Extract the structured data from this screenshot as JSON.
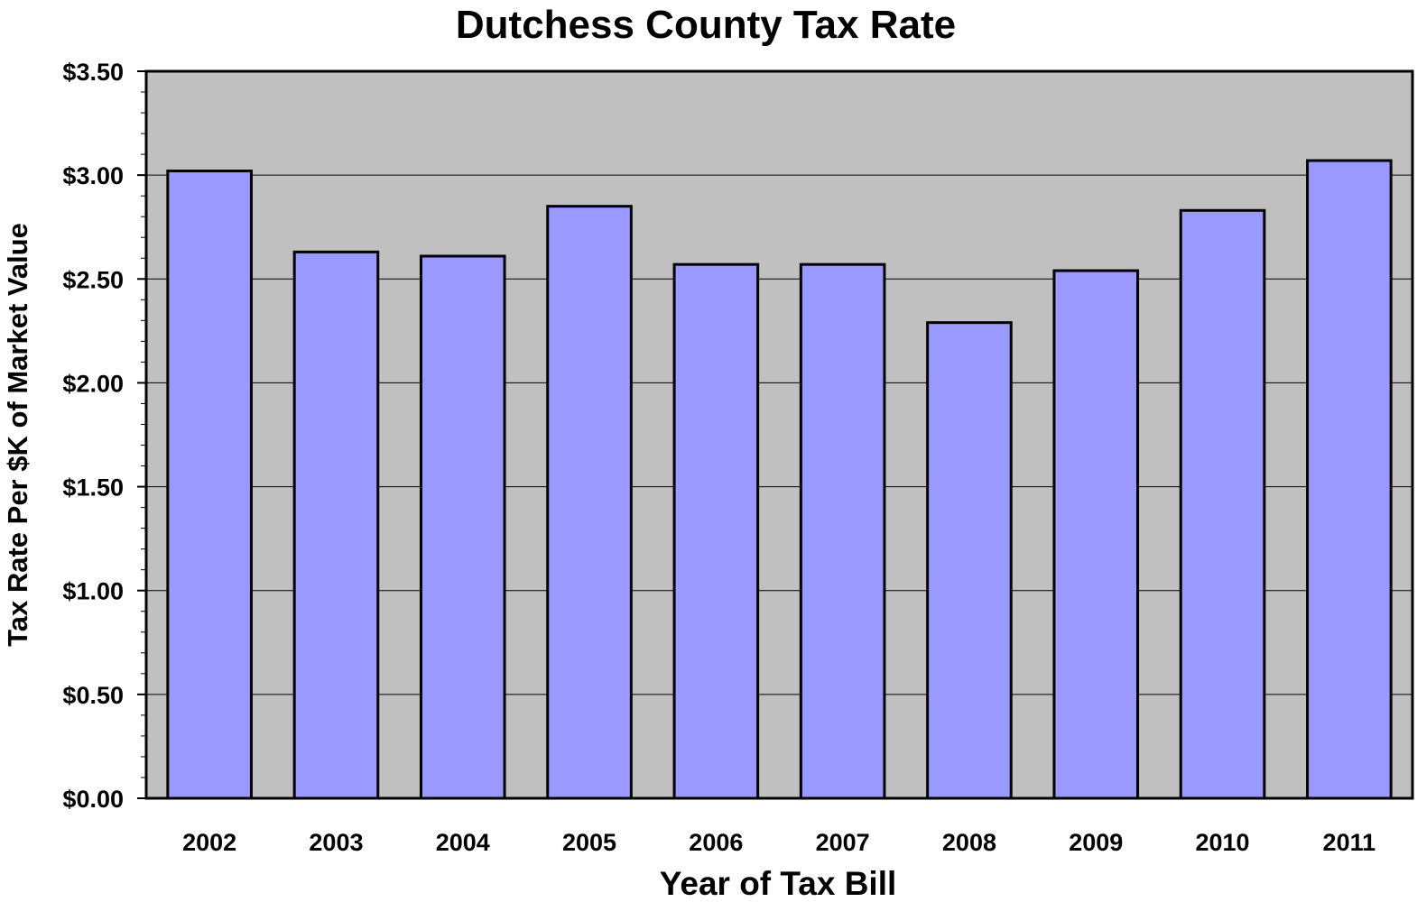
{
  "chart_data": {
    "type": "bar",
    "title": "Dutchess County Tax Rate",
    "xlabel": "Year of Tax Bill",
    "ylabel": "Tax Rate Per $K of Market Value",
    "categories": [
      "2002",
      "2003",
      "2004",
      "2005",
      "2006",
      "2007",
      "2008",
      "2009",
      "2010",
      "2011"
    ],
    "values": [
      3.02,
      2.63,
      2.61,
      2.85,
      2.57,
      2.57,
      2.29,
      2.54,
      2.83,
      3.07
    ],
    "ylim": [
      0,
      3.5
    ],
    "y_ticks": [
      0,
      0.5,
      1.0,
      1.5,
      2.0,
      2.5,
      3.0,
      3.5
    ],
    "y_tick_labels": [
      "$0.00",
      "$0.50",
      "$1.00",
      "$1.50",
      "$2.00",
      "$2.50",
      "$3.00",
      "$3.50"
    ],
    "grid": true,
    "legend": "none",
    "colors": {
      "bar_fill": "#9999ff",
      "plot_background": "#c0c0c0",
      "outline": "#000000"
    }
  }
}
